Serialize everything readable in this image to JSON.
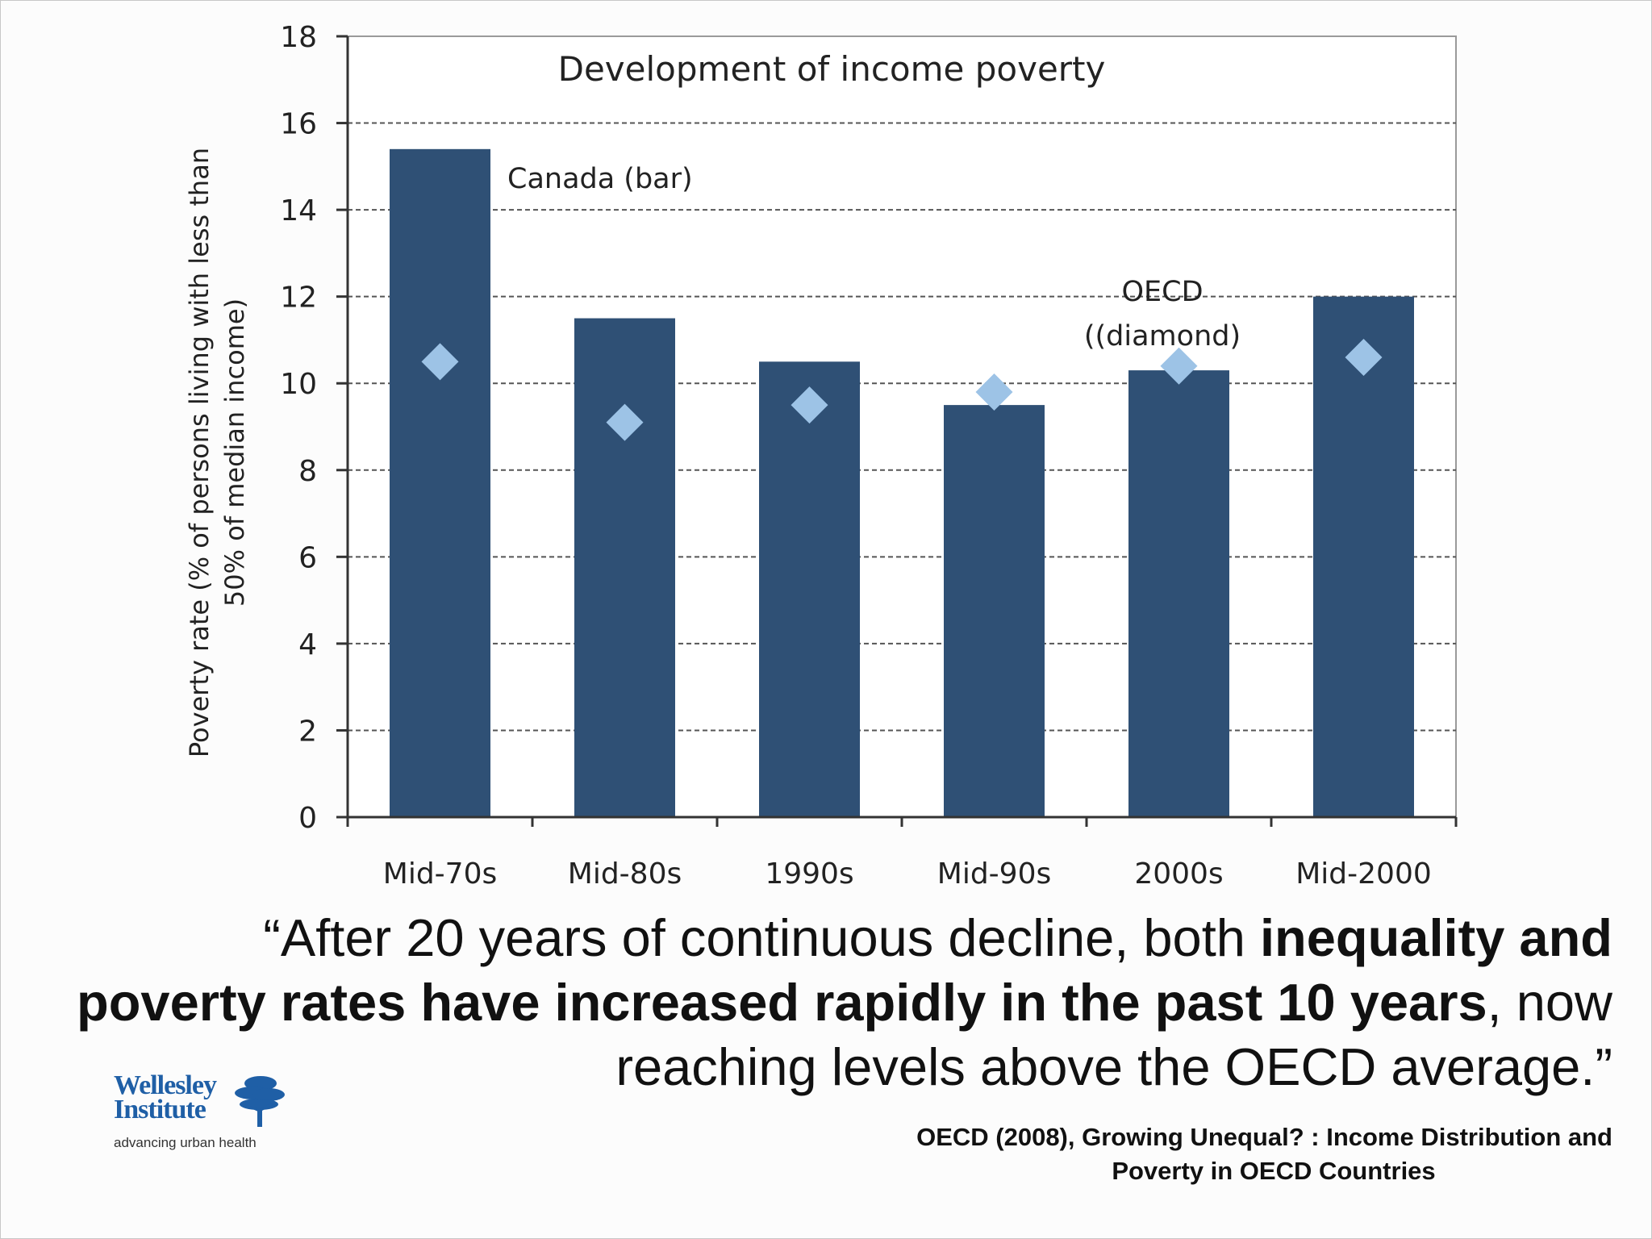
{
  "chart_data": {
    "type": "bar",
    "title": "Development of income poverty",
    "ylabel_line1": "Poverty rate  (% of persons living with less than",
    "ylabel_line2": "50% of median income)",
    "xlabel": "",
    "categories": [
      "Mid-70s",
      "Mid-80s",
      "1990s",
      "Mid-90s",
      "2000s",
      "Mid-2000"
    ],
    "series": [
      {
        "name": "Canada (bar)",
        "type": "bar",
        "values": [
          15.4,
          11.5,
          10.5,
          9.5,
          10.3,
          12.0
        ]
      },
      {
        "name": "OECD ((diamond)",
        "type": "scatter",
        "marker": "diamond",
        "values": [
          10.5,
          9.1,
          9.5,
          9.8,
          10.4,
          10.6
        ]
      }
    ],
    "ylim": [
      0,
      18
    ],
    "yticks": [
      0,
      2,
      4,
      6,
      8,
      10,
      12,
      14,
      16,
      18
    ],
    "grid": "horizontal dashed",
    "annotations": {
      "canada": "Canada (bar)",
      "oecd_line1": "OECD",
      "oecd_line2": "((diamond)"
    },
    "colors": {
      "bar": "#2f5075",
      "diamond": "#9dc3e6",
      "axis": "#333333",
      "grid": "#555555"
    }
  },
  "quote": {
    "open": "“After 20 years of continuous decline, both ",
    "bold": "inequality and poverty rates have increased rapidly in the past 10 years",
    "close": ", now reaching levels above the OECD average.”"
  },
  "citation": {
    "line1": "OECD (2008), Growing Unequal? : Income Distribution and",
    "line2": "Poverty in OECD Countries"
  },
  "logo": {
    "name_line1": "Wellesley",
    "name_line2": "Institute",
    "tagline": "advancing urban health",
    "color": "#1f5fa6",
    "icon": "tree-icon"
  }
}
